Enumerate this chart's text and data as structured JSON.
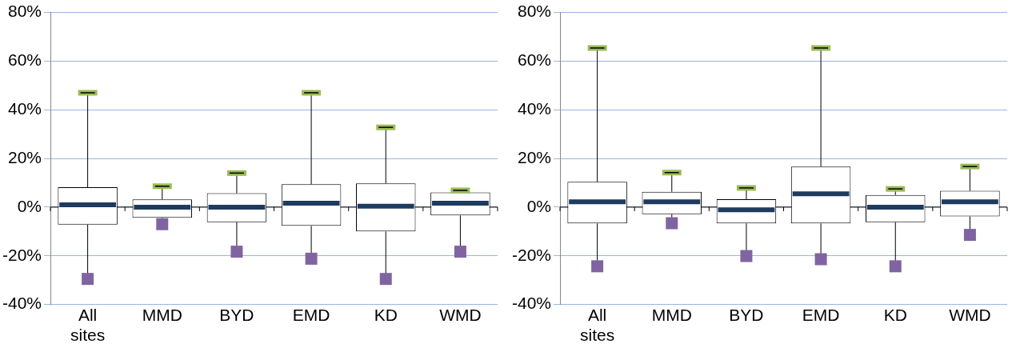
{
  "chart_data": [
    {
      "type": "box",
      "categories": [
        "All sites",
        "MMD",
        "BYD",
        "EMD",
        "KD",
        "WMD"
      ],
      "ylim": [
        -40,
        80
      ],
      "yticks": [
        {
          "value": -40,
          "label": "-40%"
        },
        {
          "value": -20,
          "label": "-20%"
        },
        {
          "value": 0,
          "label": "0%"
        },
        {
          "value": 20,
          "label": "20%"
        },
        {
          "value": 40,
          "label": "40%"
        },
        {
          "value": 60,
          "label": "60%"
        },
        {
          "value": 80,
          "label": "80%"
        }
      ],
      "grid": "y",
      "boxes": [
        {
          "low": -29.5,
          "q1": -7.2,
          "median": 1,
          "q3": 8.2,
          "high": 47
        },
        {
          "low": -7,
          "q1": -4.4,
          "median": 0,
          "q3": 3.2,
          "high": 8.6
        },
        {
          "low": -18.3,
          "q1": -6.2,
          "median": 0,
          "q3": 5.7,
          "high": 14
        },
        {
          "low": -21.2,
          "q1": -7.7,
          "median": 1.6,
          "q3": 9.4,
          "high": 47
        },
        {
          "low": -29.5,
          "q1": -10,
          "median": 0.4,
          "q3": 9.8,
          "high": 32.8
        },
        {
          "low": -18.3,
          "q1": -3.4,
          "median": 1.6,
          "q3": 6.1,
          "high": 6.9
        }
      ]
    },
    {
      "type": "box",
      "categories": [
        "All sites",
        "MMD",
        "BYD",
        "EMD",
        "KD",
        "WMD"
      ],
      "ylim": [
        -40,
        80
      ],
      "yticks": [
        {
          "value": -40,
          "label": "-40%"
        },
        {
          "value": -20,
          "label": "-20%"
        },
        {
          "value": 0,
          "label": "0%"
        },
        {
          "value": 20,
          "label": "20%"
        },
        {
          "value": 40,
          "label": "40%"
        },
        {
          "value": 60,
          "label": "60%"
        },
        {
          "value": 80,
          "label": "80%"
        }
      ],
      "grid": "y",
      "boxes": [
        {
          "low": -24.3,
          "q1": -6.7,
          "median": 2.2,
          "q3": 10.4,
          "high": 65.4
        },
        {
          "low": -6.6,
          "q1": -2.9,
          "median": 2.2,
          "q3": 6.3,
          "high": 14.2
        },
        {
          "low": -20.1,
          "q1": -6.7,
          "median": -1.1,
          "q3": 3.3,
          "high": 7.9
        },
        {
          "low": -21.4,
          "q1": -6.7,
          "median": 5.5,
          "q3": 16.7,
          "high": 65.4
        },
        {
          "low": -24.3,
          "q1": -6.2,
          "median": 0,
          "q3": 5,
          "high": 7.5
        },
        {
          "low": -11.4,
          "q1": -3.8,
          "median": 2.2,
          "q3": 6.7,
          "high": 16.7
        }
      ]
    }
  ]
}
